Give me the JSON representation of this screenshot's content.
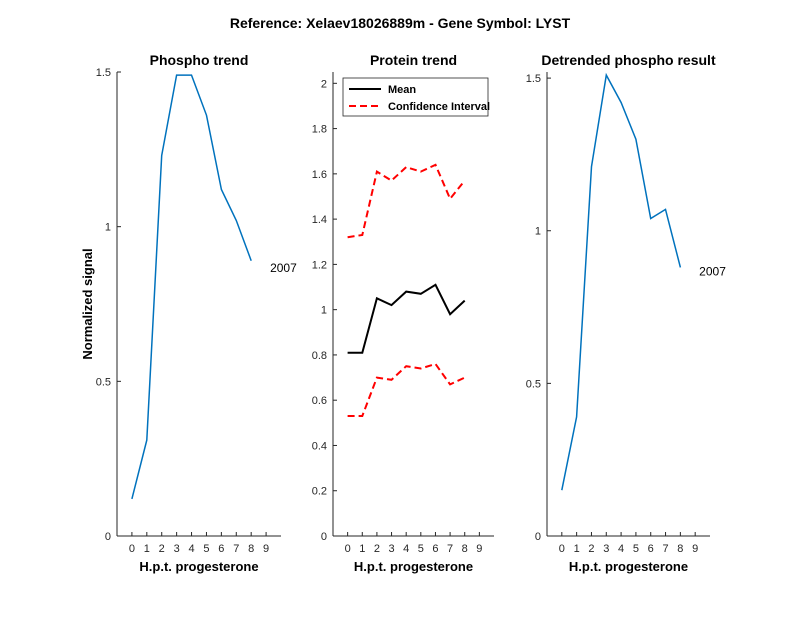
{
  "figure_title": "Reference:  Xelaev18026889m - Gene Symbol:  LYST",
  "colors": {
    "blue": "#0072BD",
    "black": "#000000",
    "red": "#FF0000"
  },
  "chart_data": [
    {
      "type": "line",
      "title": "Phospho trend",
      "xlabel": "H.p.t. progesterone",
      "ylabel": "Normalized signal",
      "xlim": [
        -1,
        10
      ],
      "ylim": [
        0,
        1.5
      ],
      "xticks": [
        0,
        1,
        2,
        3,
        4,
        5,
        6,
        7,
        8,
        9
      ],
      "yticks": [
        0,
        0.5,
        1,
        1.5
      ],
      "ytick_labels": [
        "0",
        "0.5",
        "1",
        "1.5"
      ],
      "series": [
        {
          "x": [
            0,
            1,
            2,
            3,
            4,
            5,
            6,
            7,
            8,
            9
          ],
          "values": [
            0.12,
            0.31,
            1.23,
            1.49,
            1.49,
            1.36,
            1.12,
            1.02,
            0.89,
            null
          ],
          "color": "#0072BD"
        }
      ],
      "annotation": {
        "text": "2007",
        "x": 9,
        "y": 0.88
      }
    },
    {
      "type": "line",
      "title": "Protein trend",
      "xlabel": "H.p.t. progesterone",
      "ylabel": "",
      "xlim": [
        -1,
        10
      ],
      "ylim": [
        0,
        2.05
      ],
      "xticks": [
        0,
        1,
        2,
        3,
        4,
        5,
        6,
        7,
        8,
        9
      ],
      "yticks": [
        0,
        0.2,
        0.4,
        0.6,
        0.8,
        1,
        1.2,
        1.4,
        1.6,
        1.8,
        2
      ],
      "ytick_labels": [
        "0",
        "0.2",
        "0.4",
        "0.6",
        "0.8",
        "1",
        "1.2",
        "1.4",
        "1.6",
        "1.8",
        "2"
      ],
      "legend": {
        "position": "top-left",
        "entries": [
          "Mean",
          "Confidence Interval"
        ]
      },
      "series": [
        {
          "name": "Mean",
          "x": [
            0,
            1,
            2,
            3,
            4,
            5,
            6,
            7,
            8,
            9
          ],
          "values": [
            0.81,
            0.81,
            1.05,
            1.02,
            1.08,
            1.07,
            1.11,
            0.98,
            1.04,
            null
          ],
          "color": "#000000",
          "dash": false
        },
        {
          "name": "Confidence Interval",
          "x": [
            0,
            1,
            2,
            3,
            4,
            5,
            6,
            7,
            8,
            9
          ],
          "values": [
            1.32,
            1.33,
            1.61,
            1.57,
            1.63,
            1.61,
            1.64,
            1.49,
            1.57,
            null
          ],
          "color": "#FF0000",
          "dash": true
        },
        {
          "name": "Confidence Interval",
          "x": [
            0,
            1,
            2,
            3,
            4,
            5,
            6,
            7,
            8,
            9
          ],
          "values": [
            0.53,
            0.53,
            0.7,
            0.69,
            0.75,
            0.74,
            0.76,
            0.67,
            0.7,
            null
          ],
          "color": "#FF0000",
          "dash": true
        }
      ]
    },
    {
      "type": "line",
      "title": "Detrended phospho result",
      "xlabel": "H.p.t. progesterone",
      "ylabel": "",
      "xlim": [
        -1,
        10
      ],
      "ylim": [
        0,
        1.52
      ],
      "xticks": [
        0,
        1,
        2,
        3,
        4,
        5,
        6,
        7,
        8,
        9
      ],
      "yticks": [
        0,
        0.5,
        1,
        1.5
      ],
      "ytick_labels": [
        "0",
        "0.5",
        "1",
        "1.5"
      ],
      "series": [
        {
          "x": [
            0,
            1,
            2,
            3,
            4,
            5,
            6,
            7,
            8,
            9
          ],
          "values": [
            0.15,
            0.39,
            1.21,
            1.51,
            1.42,
            1.3,
            1.04,
            1.07,
            0.88,
            null
          ],
          "color": "#0072BD"
        }
      ],
      "annotation": {
        "text": "2007",
        "x": 9,
        "y": 0.88
      }
    }
  ]
}
